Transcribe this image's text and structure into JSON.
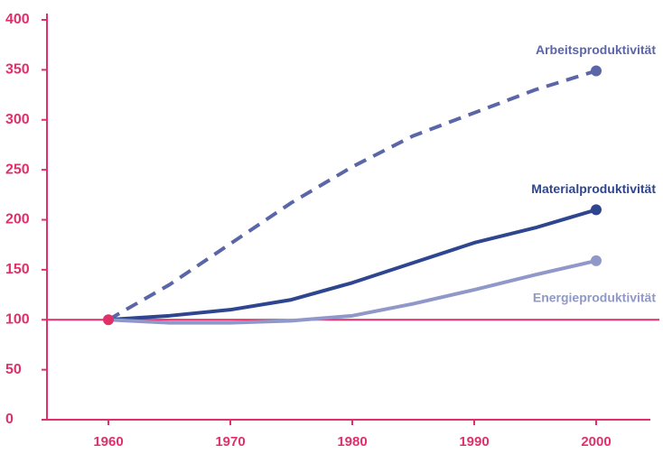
{
  "chart_data": {
    "type": "line",
    "x": [
      1960,
      1965,
      1970,
      1975,
      1980,
      1985,
      1990,
      1995,
      2000
    ],
    "series": [
      {
        "name": "Arbeitsproduktivität",
        "color": "#5b66a8",
        "dashed": true,
        "values": [
          100,
          135,
          176,
          217,
          253,
          284,
          307,
          330,
          349
        ]
      },
      {
        "name": "Materialproduktivität",
        "color": "#2e4590",
        "dashed": false,
        "values": [
          100,
          104,
          110,
          120,
          137,
          157,
          177,
          192,
          210
        ]
      },
      {
        "name": "Energieproduktivität",
        "color": "#8f98c8",
        "dashed": false,
        "values": [
          100,
          97,
          97,
          99,
          104,
          116,
          130,
          145,
          159
        ]
      }
    ],
    "reference_line": 100,
    "axis_color": "#e0306a",
    "xlim": [
      1955,
      2005
    ],
    "xticks": [
      1960,
      1970,
      1980,
      1990,
      2000
    ],
    "ylim": [
      0,
      400
    ],
    "yticks": [
      0,
      50,
      100,
      150,
      200,
      250,
      300,
      350,
      400
    ]
  }
}
